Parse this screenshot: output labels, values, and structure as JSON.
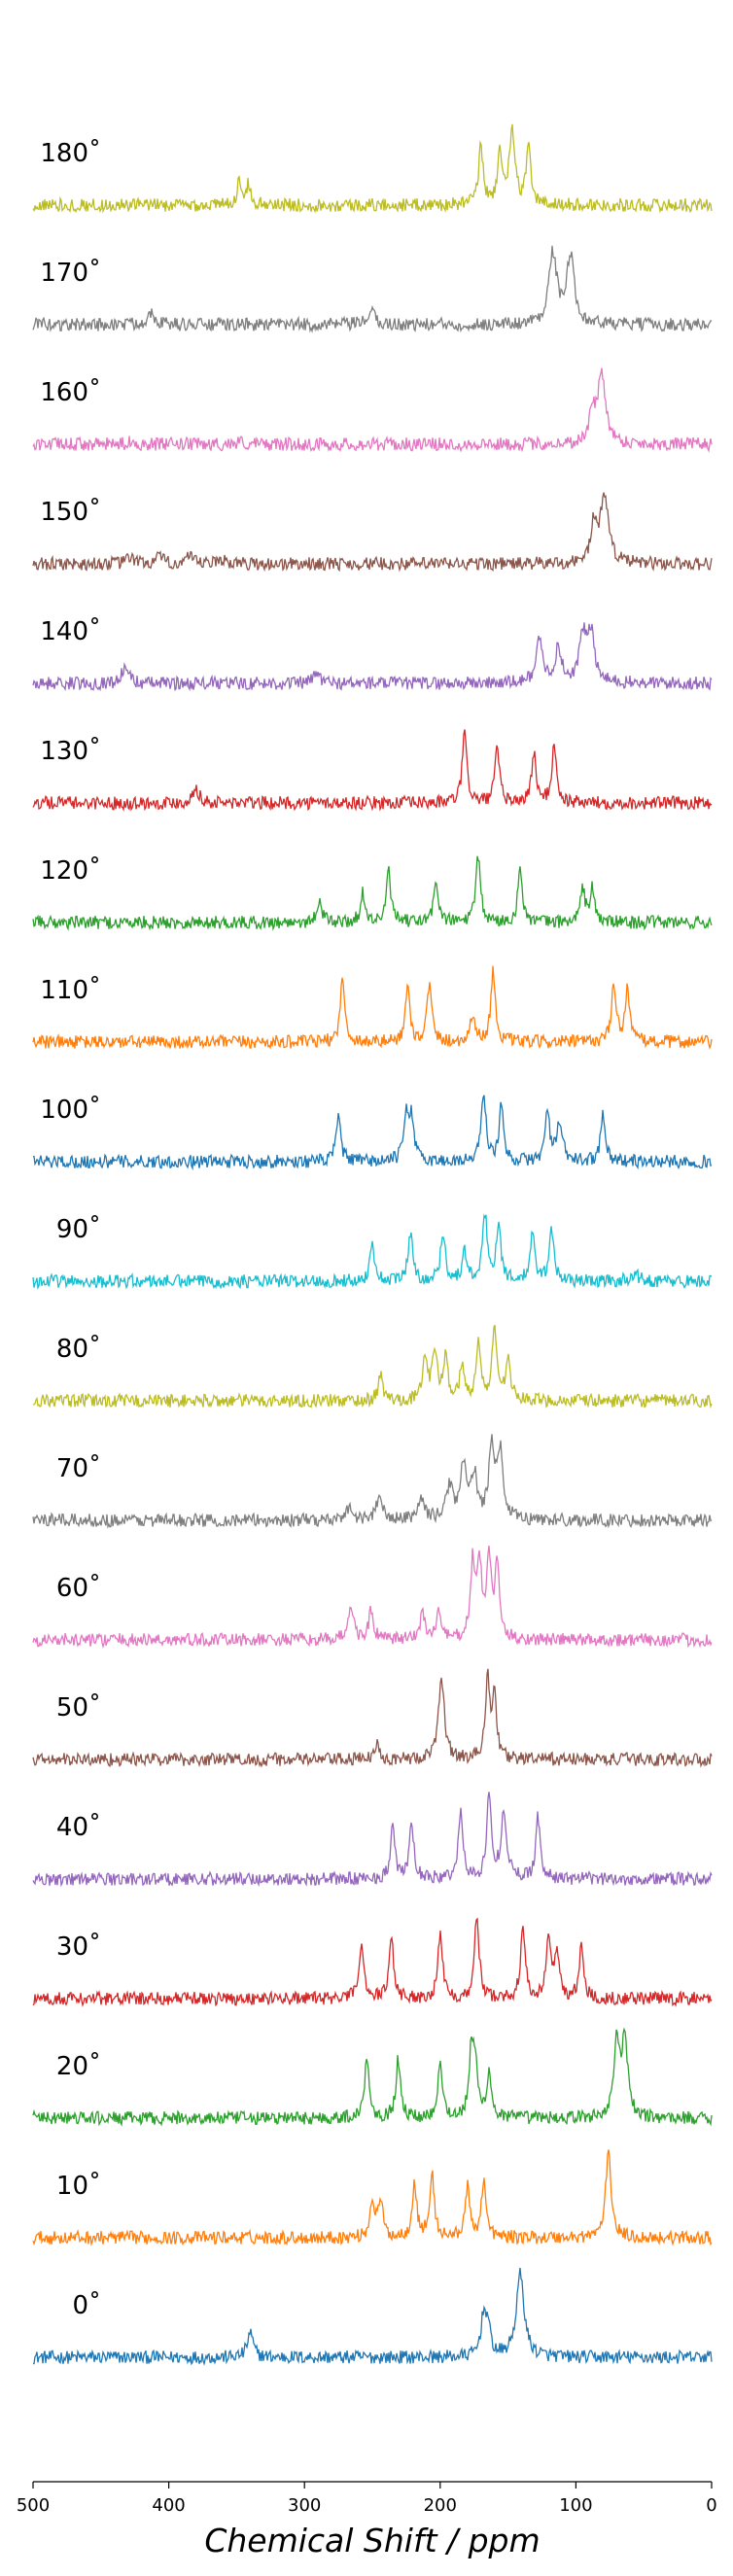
{
  "chart_data": {
    "type": "line",
    "title": "",
    "xlabel": "Chemical Shift / ppm",
    "ylabel": "",
    "xlim": [
      500,
      0
    ],
    "x_reversed": true,
    "x_ticks": [
      500,
      400,
      300,
      200,
      100,
      0
    ],
    "grid": false,
    "legend": "none",
    "stacked": true,
    "series": [
      {
        "name": "0˚",
        "angle": 0,
        "color": "#1f77b4",
        "peaks": [
          {
            "shift": 340,
            "height": 0.3,
            "width": 2.5
          },
          {
            "shift": 168,
            "height": 0.45,
            "width": 2.5
          },
          {
            "shift": 165,
            "height": 0.3,
            "width": 2.5
          },
          {
            "shift": 141,
            "height": 1.0,
            "width": 3.5
          }
        ]
      },
      {
        "name": "10˚",
        "angle": 10,
        "color": "#ff7f0e",
        "peaks": [
          {
            "shift": 250,
            "height": 0.45,
            "width": 2
          },
          {
            "shift": 244,
            "height": 0.45,
            "width": 2
          },
          {
            "shift": 219,
            "height": 0.65,
            "width": 2
          },
          {
            "shift": 206,
            "height": 0.75,
            "width": 2
          },
          {
            "shift": 180,
            "height": 0.6,
            "width": 2
          },
          {
            "shift": 168,
            "height": 0.7,
            "width": 2
          },
          {
            "shift": 76,
            "height": 1.0,
            "width": 2.5
          }
        ]
      },
      {
        "name": "20˚",
        "angle": 20,
        "color": "#2ca02c",
        "peaks": [
          {
            "shift": 254,
            "height": 0.75,
            "width": 2
          },
          {
            "shift": 231,
            "height": 0.7,
            "width": 2
          },
          {
            "shift": 200,
            "height": 0.7,
            "width": 2
          },
          {
            "shift": 177,
            "height": 0.8,
            "width": 2
          },
          {
            "shift": 174,
            "height": 0.55,
            "width": 2
          },
          {
            "shift": 164,
            "height": 0.55,
            "width": 2
          },
          {
            "shift": 70,
            "height": 0.9,
            "width": 2.5
          },
          {
            "shift": 64,
            "height": 0.95,
            "width": 2.5
          }
        ]
      },
      {
        "name": "30˚",
        "angle": 30,
        "color": "#d62728",
        "peaks": [
          {
            "shift": 258,
            "height": 0.7,
            "width": 2
          },
          {
            "shift": 236,
            "height": 0.75,
            "width": 2
          },
          {
            "shift": 200,
            "height": 0.8,
            "width": 2
          },
          {
            "shift": 173,
            "height": 1.0,
            "width": 2
          },
          {
            "shift": 139,
            "height": 0.85,
            "width": 2
          },
          {
            "shift": 120,
            "height": 0.75,
            "width": 2
          },
          {
            "shift": 114,
            "height": 0.55,
            "width": 2
          },
          {
            "shift": 96,
            "height": 0.6,
            "width": 2
          }
        ]
      },
      {
        "name": "40˚",
        "angle": 40,
        "color": "#9467bd",
        "peaks": [
          {
            "shift": 235,
            "height": 0.6,
            "width": 2
          },
          {
            "shift": 221,
            "height": 0.65,
            "width": 2
          },
          {
            "shift": 185,
            "height": 0.8,
            "width": 2
          },
          {
            "shift": 164,
            "height": 1.0,
            "width": 2
          },
          {
            "shift": 153,
            "height": 0.8,
            "width": 2.5
          },
          {
            "shift": 128,
            "height": 0.75,
            "width": 2
          }
        ]
      },
      {
        "name": "50˚",
        "angle": 50,
        "color": "#8c564b",
        "peaks": [
          {
            "shift": 246,
            "height": 0.2,
            "width": 2
          },
          {
            "shift": 199,
            "height": 1.0,
            "width": 2.5
          },
          {
            "shift": 165,
            "height": 0.95,
            "width": 2
          },
          {
            "shift": 160,
            "height": 0.7,
            "width": 2
          }
        ]
      },
      {
        "name": "60˚",
        "angle": 60,
        "color": "#e377c2",
        "peaks": [
          {
            "shift": 266,
            "height": 0.4,
            "width": 2.5
          },
          {
            "shift": 251,
            "height": 0.35,
            "width": 2
          },
          {
            "shift": 213,
            "height": 0.35,
            "width": 2
          },
          {
            "shift": 201,
            "height": 0.35,
            "width": 2
          },
          {
            "shift": 176,
            "height": 0.9,
            "width": 2
          },
          {
            "shift": 171,
            "height": 0.85,
            "width": 2
          },
          {
            "shift": 164,
            "height": 0.95,
            "width": 2
          },
          {
            "shift": 158,
            "height": 0.85,
            "width": 2
          }
        ]
      },
      {
        "name": "70˚",
        "angle": 70,
        "color": "#7f7f7f",
        "peaks": [
          {
            "shift": 268,
            "height": 0.15,
            "width": 3
          },
          {
            "shift": 245,
            "height": 0.25,
            "width": 3
          },
          {
            "shift": 214,
            "height": 0.25,
            "width": 3
          },
          {
            "shift": 193,
            "height": 0.4,
            "width": 3
          },
          {
            "shift": 183,
            "height": 0.65,
            "width": 2.5
          },
          {
            "shift": 175,
            "height": 0.55,
            "width": 2.5
          },
          {
            "shift": 162,
            "height": 0.85,
            "width": 2.5
          },
          {
            "shift": 156,
            "height": 0.8,
            "width": 2.5
          }
        ]
      },
      {
        "name": "80˚",
        "angle": 80,
        "color": "#bcbd22",
        "peaks": [
          {
            "shift": 244,
            "height": 0.3,
            "width": 2
          },
          {
            "shift": 211,
            "height": 0.55,
            "width": 2
          },
          {
            "shift": 204,
            "height": 0.6,
            "width": 2
          },
          {
            "shift": 196,
            "height": 0.5,
            "width": 2
          },
          {
            "shift": 184,
            "height": 0.4,
            "width": 2
          },
          {
            "shift": 172,
            "height": 0.7,
            "width": 2
          },
          {
            "shift": 160,
            "height": 0.9,
            "width": 2
          },
          {
            "shift": 150,
            "height": 0.55,
            "width": 2
          }
        ]
      },
      {
        "name": "90˚",
        "angle": 90,
        "color": "#17becf",
        "peaks": [
          {
            "shift": 250,
            "height": 0.45,
            "width": 2
          },
          {
            "shift": 222,
            "height": 0.6,
            "width": 2
          },
          {
            "shift": 198,
            "height": 0.6,
            "width": 2
          },
          {
            "shift": 182,
            "height": 0.35,
            "width": 2
          },
          {
            "shift": 167,
            "height": 0.8,
            "width": 2
          },
          {
            "shift": 157,
            "height": 0.7,
            "width": 2
          },
          {
            "shift": 132,
            "height": 0.55,
            "width": 2
          },
          {
            "shift": 118,
            "height": 0.65,
            "width": 2
          },
          {
            "shift": 57,
            "height": 0.1,
            "width": 3
          }
        ]
      },
      {
        "name": "100˚",
        "angle": 100,
        "color": "#1f77b4",
        "peaks": [
          {
            "shift": 275,
            "height": 0.55,
            "width": 2
          },
          {
            "shift": 225,
            "height": 0.6,
            "width": 2
          },
          {
            "shift": 221,
            "height": 0.5,
            "width": 2
          },
          {
            "shift": 168,
            "height": 0.85,
            "width": 2
          },
          {
            "shift": 155,
            "height": 0.65,
            "width": 2
          },
          {
            "shift": 121,
            "height": 0.6,
            "width": 2
          },
          {
            "shift": 112,
            "height": 0.45,
            "width": 2.5
          },
          {
            "shift": 80,
            "height": 0.6,
            "width": 2
          }
        ]
      },
      {
        "name": "110˚",
        "angle": 110,
        "color": "#ff7f0e",
        "peaks": [
          {
            "shift": 272,
            "height": 0.75,
            "width": 2
          },
          {
            "shift": 224,
            "height": 0.65,
            "width": 2
          },
          {
            "shift": 208,
            "height": 0.7,
            "width": 2
          },
          {
            "shift": 176,
            "height": 0.35,
            "width": 2
          },
          {
            "shift": 161,
            "height": 0.85,
            "width": 2
          },
          {
            "shift": 72,
            "height": 0.7,
            "width": 2
          },
          {
            "shift": 62,
            "height": 0.65,
            "width": 2
          }
        ]
      },
      {
        "name": "120˚",
        "angle": 120,
        "color": "#2ca02c",
        "peaks": [
          {
            "shift": 289,
            "height": 0.3,
            "width": 2
          },
          {
            "shift": 257,
            "height": 0.35,
            "width": 2
          },
          {
            "shift": 238,
            "height": 0.6,
            "width": 2
          },
          {
            "shift": 203,
            "height": 0.5,
            "width": 2
          },
          {
            "shift": 172,
            "height": 0.8,
            "width": 2
          },
          {
            "shift": 141,
            "height": 0.65,
            "width": 2
          },
          {
            "shift": 95,
            "height": 0.4,
            "width": 2
          },
          {
            "shift": 88,
            "height": 0.4,
            "width": 2
          }
        ]
      },
      {
        "name": "130˚",
        "angle": 130,
        "color": "#d62728",
        "peaks": [
          {
            "shift": 380,
            "height": 0.2,
            "width": 2.5
          },
          {
            "shift": 182,
            "height": 0.85,
            "width": 2
          },
          {
            "shift": 158,
            "height": 0.65,
            "width": 2
          },
          {
            "shift": 131,
            "height": 0.6,
            "width": 2
          },
          {
            "shift": 116,
            "height": 0.7,
            "width": 2
          }
        ]
      },
      {
        "name": "140˚",
        "angle": 140,
        "color": "#9467bd",
        "peaks": [
          {
            "shift": 432,
            "height": 0.2,
            "width": 3
          },
          {
            "shift": 291,
            "height": 0.12,
            "width": 3
          },
          {
            "shift": 127,
            "height": 0.5,
            "width": 3
          },
          {
            "shift": 113,
            "height": 0.4,
            "width": 3
          },
          {
            "shift": 95,
            "height": 0.55,
            "width": 3
          },
          {
            "shift": 89,
            "height": 0.6,
            "width": 3
          }
        ]
      },
      {
        "name": "150˚",
        "angle": 150,
        "color": "#8c564b",
        "peaks": [
          {
            "shift": 428,
            "height": 0.08,
            "width": 3
          },
          {
            "shift": 407,
            "height": 0.08,
            "width": 3
          },
          {
            "shift": 385,
            "height": 0.08,
            "width": 3
          },
          {
            "shift": 360,
            "height": 0.06,
            "width": 3
          },
          {
            "shift": 87,
            "height": 0.45,
            "width": 2.5
          },
          {
            "shift": 79,
            "height": 0.85,
            "width": 3.5
          }
        ]
      },
      {
        "name": "160˚",
        "angle": 160,
        "color": "#e377c2",
        "peaks": [
          {
            "shift": 428,
            "height": 0.03,
            "width": 3
          },
          {
            "shift": 348,
            "height": 0.03,
            "width": 3
          },
          {
            "shift": 88,
            "height": 0.35,
            "width": 2.5
          },
          {
            "shift": 81,
            "height": 0.85,
            "width": 3.5
          }
        ]
      },
      {
        "name": "170˚",
        "angle": 170,
        "color": "#7f7f7f",
        "peaks": [
          {
            "shift": 413,
            "height": 0.15,
            "width": 3.5
          },
          {
            "shift": 251,
            "height": 0.15,
            "width": 3.5
          },
          {
            "shift": 117,
            "height": 0.85,
            "width": 3.5
          },
          {
            "shift": 104,
            "height": 0.8,
            "width": 3.5
          }
        ]
      },
      {
        "name": "180˚",
        "angle": 180,
        "color": "#bcbd22",
        "peaks": [
          {
            "shift": 348,
            "height": 0.3,
            "width": 2
          },
          {
            "shift": 341,
            "height": 0.25,
            "width": 2
          },
          {
            "shift": 170,
            "height": 0.7,
            "width": 2
          },
          {
            "shift": 156,
            "height": 0.65,
            "width": 2
          },
          {
            "shift": 147,
            "height": 0.85,
            "width": 2.5
          },
          {
            "shift": 135,
            "height": 0.7,
            "width": 2
          }
        ]
      }
    ]
  }
}
